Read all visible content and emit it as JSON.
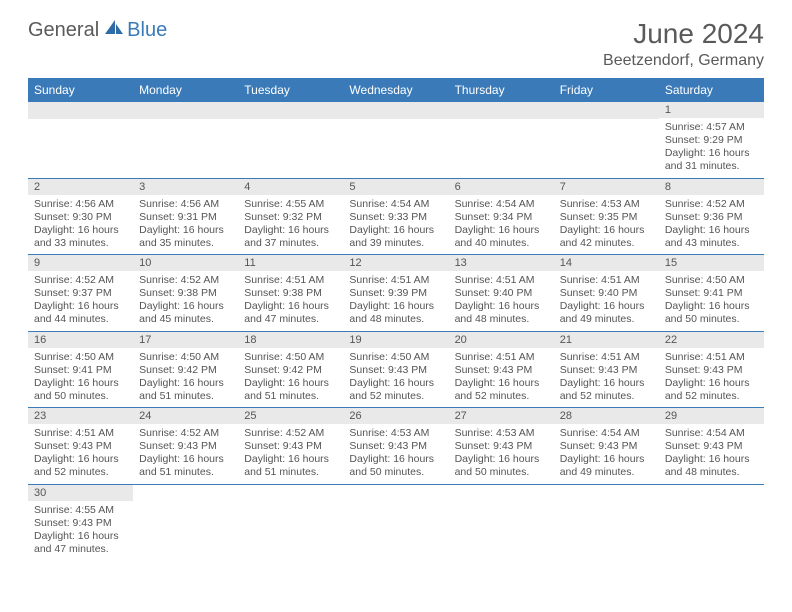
{
  "brand": {
    "part1": "General",
    "part2": "Blue"
  },
  "title": "June 2024",
  "location": "Beetzendorf, Germany",
  "colors": {
    "header_bg": "#3a7ab8",
    "header_text": "#ffffff",
    "daybar_bg": "#e9e9e9",
    "text": "#555555",
    "border": "#3a7ab8"
  },
  "weekdays": [
    "Sunday",
    "Monday",
    "Tuesday",
    "Wednesday",
    "Thursday",
    "Friday",
    "Saturday"
  ],
  "grid": [
    [
      null,
      null,
      null,
      null,
      null,
      null,
      {
        "n": "1",
        "sr": "4:57 AM",
        "ss": "9:29 PM",
        "dl": "16 hours and 31 minutes."
      }
    ],
    [
      {
        "n": "2",
        "sr": "4:56 AM",
        "ss": "9:30 PM",
        "dl": "16 hours and 33 minutes."
      },
      {
        "n": "3",
        "sr": "4:56 AM",
        "ss": "9:31 PM",
        "dl": "16 hours and 35 minutes."
      },
      {
        "n": "4",
        "sr": "4:55 AM",
        "ss": "9:32 PM",
        "dl": "16 hours and 37 minutes."
      },
      {
        "n": "5",
        "sr": "4:54 AM",
        "ss": "9:33 PM",
        "dl": "16 hours and 39 minutes."
      },
      {
        "n": "6",
        "sr": "4:54 AM",
        "ss": "9:34 PM",
        "dl": "16 hours and 40 minutes."
      },
      {
        "n": "7",
        "sr": "4:53 AM",
        "ss": "9:35 PM",
        "dl": "16 hours and 42 minutes."
      },
      {
        "n": "8",
        "sr": "4:52 AM",
        "ss": "9:36 PM",
        "dl": "16 hours and 43 minutes."
      }
    ],
    [
      {
        "n": "9",
        "sr": "4:52 AM",
        "ss": "9:37 PM",
        "dl": "16 hours and 44 minutes."
      },
      {
        "n": "10",
        "sr": "4:52 AM",
        "ss": "9:38 PM",
        "dl": "16 hours and 45 minutes."
      },
      {
        "n": "11",
        "sr": "4:51 AM",
        "ss": "9:38 PM",
        "dl": "16 hours and 47 minutes."
      },
      {
        "n": "12",
        "sr": "4:51 AM",
        "ss": "9:39 PM",
        "dl": "16 hours and 48 minutes."
      },
      {
        "n": "13",
        "sr": "4:51 AM",
        "ss": "9:40 PM",
        "dl": "16 hours and 48 minutes."
      },
      {
        "n": "14",
        "sr": "4:51 AM",
        "ss": "9:40 PM",
        "dl": "16 hours and 49 minutes."
      },
      {
        "n": "15",
        "sr": "4:50 AM",
        "ss": "9:41 PM",
        "dl": "16 hours and 50 minutes."
      }
    ],
    [
      {
        "n": "16",
        "sr": "4:50 AM",
        "ss": "9:41 PM",
        "dl": "16 hours and 50 minutes."
      },
      {
        "n": "17",
        "sr": "4:50 AM",
        "ss": "9:42 PM",
        "dl": "16 hours and 51 minutes."
      },
      {
        "n": "18",
        "sr": "4:50 AM",
        "ss": "9:42 PM",
        "dl": "16 hours and 51 minutes."
      },
      {
        "n": "19",
        "sr": "4:50 AM",
        "ss": "9:43 PM",
        "dl": "16 hours and 52 minutes."
      },
      {
        "n": "20",
        "sr": "4:51 AM",
        "ss": "9:43 PM",
        "dl": "16 hours and 52 minutes."
      },
      {
        "n": "21",
        "sr": "4:51 AM",
        "ss": "9:43 PM",
        "dl": "16 hours and 52 minutes."
      },
      {
        "n": "22",
        "sr": "4:51 AM",
        "ss": "9:43 PM",
        "dl": "16 hours and 52 minutes."
      }
    ],
    [
      {
        "n": "23",
        "sr": "4:51 AM",
        "ss": "9:43 PM",
        "dl": "16 hours and 52 minutes."
      },
      {
        "n": "24",
        "sr": "4:52 AM",
        "ss": "9:43 PM",
        "dl": "16 hours and 51 minutes."
      },
      {
        "n": "25",
        "sr": "4:52 AM",
        "ss": "9:43 PM",
        "dl": "16 hours and 51 minutes."
      },
      {
        "n": "26",
        "sr": "4:53 AM",
        "ss": "9:43 PM",
        "dl": "16 hours and 50 minutes."
      },
      {
        "n": "27",
        "sr": "4:53 AM",
        "ss": "9:43 PM",
        "dl": "16 hours and 50 minutes."
      },
      {
        "n": "28",
        "sr": "4:54 AM",
        "ss": "9:43 PM",
        "dl": "16 hours and 49 minutes."
      },
      {
        "n": "29",
        "sr": "4:54 AM",
        "ss": "9:43 PM",
        "dl": "16 hours and 48 minutes."
      }
    ],
    [
      {
        "n": "30",
        "sr": "4:55 AM",
        "ss": "9:43 PM",
        "dl": "16 hours and 47 minutes."
      },
      null,
      null,
      null,
      null,
      null,
      null
    ]
  ],
  "labels": {
    "sunrise": "Sunrise:",
    "sunset": "Sunset:",
    "daylight": "Daylight:"
  }
}
